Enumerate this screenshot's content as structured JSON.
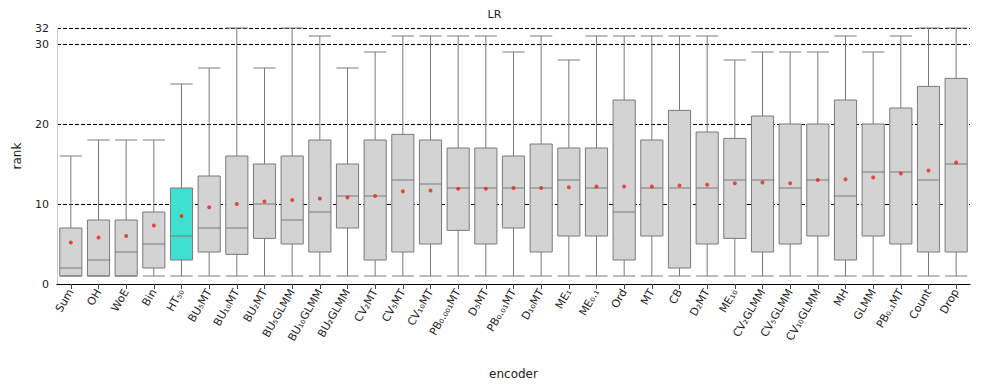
{
  "chart_data": {
    "type": "boxplot",
    "title": "LR",
    "x_label": "encoder",
    "y_label": "rank",
    "categories": [
      "Sum",
      "OH",
      "WoE",
      "Bin",
      "HT₅₀",
      "BU₅MT",
      "BU₁₀MT",
      "BU₂MT",
      "BU₅GLMM",
      "BU₁₀GLMM",
      "BU₂GLMM",
      "CV₂MT",
      "CV₅MT",
      "CV₁₀MT",
      "PB₀.₀₀₁MT",
      "D₅MT",
      "PB₀.₀₁MT",
      "D₁₀MT",
      "ME₁",
      "ME₀.₁",
      "Ord",
      "MT",
      "CB",
      "D₂MT",
      "ME₁₀",
      "CV₂GLMM",
      "CV₅GLMM",
      "CV₁₀GLMM",
      "MH",
      "GLMM",
      "PB₀.₁MT",
      "Count",
      "Drop"
    ],
    "series": [
      {
        "type": "boxplot",
        "values": [
          [
            1,
            1,
            2,
            7,
            16
          ],
          [
            1,
            1,
            3,
            8,
            18
          ],
          [
            1,
            1,
            4,
            8,
            18
          ],
          [
            1,
            2,
            5,
            9,
            18
          ],
          [
            1,
            3,
            6,
            12,
            25
          ],
          [
            1,
            4,
            7,
            13.5,
            27
          ],
          [
            1,
            3.7,
            7,
            16,
            32
          ],
          [
            1,
            5.7,
            10,
            15,
            27
          ],
          [
            1,
            5,
            8,
            16,
            32
          ],
          [
            1,
            4,
            9,
            18,
            31
          ],
          [
            1,
            7,
            11,
            15,
            27
          ],
          [
            1,
            3,
            11,
            18,
            29
          ],
          [
            1,
            4,
            13,
            18.7,
            31
          ],
          [
            1,
            5,
            12.5,
            18,
            31
          ],
          [
            1,
            6.7,
            12,
            17,
            31
          ],
          [
            1,
            5,
            12,
            17,
            31
          ],
          [
            1,
            7,
            12,
            16,
            29
          ],
          [
            1,
            4,
            12,
            17.5,
            31
          ],
          [
            1,
            6,
            13,
            17,
            28
          ],
          [
            1,
            6,
            12,
            17,
            31
          ],
          [
            1,
            3,
            9,
            23,
            31
          ],
          [
            1,
            6,
            12,
            18,
            31
          ],
          [
            1,
            2,
            12,
            21.7,
            31
          ],
          [
            1,
            5,
            12,
            19,
            31
          ],
          [
            1,
            5.7,
            13,
            18.2,
            28
          ],
          [
            1,
            4,
            13,
            21,
            29
          ],
          [
            1,
            5,
            12,
            20,
            29
          ],
          [
            1,
            6,
            13,
            20,
            29
          ],
          [
            1,
            3,
            11,
            23,
            31
          ],
          [
            1,
            6,
            14,
            20,
            29
          ],
          [
            1,
            5,
            14,
            22,
            31
          ],
          [
            1,
            4,
            13,
            24.7,
            32
          ],
          [
            1,
            4,
            15,
            25.7,
            32
          ]
        ],
        "colors": [
          "#d3d3d3",
          "#d3d3d3",
          "#d3d3d3",
          "#d3d3d3",
          "#40e0d0",
          "#d3d3d3",
          "#d3d3d3",
          "#d3d3d3",
          "#d3d3d3",
          "#d3d3d3",
          "#d3d3d3",
          "#d3d3d3",
          "#d3d3d3",
          "#d3d3d3",
          "#d3d3d3",
          "#d3d3d3",
          "#d3d3d3",
          "#d3d3d3",
          "#d3d3d3",
          "#d3d3d3",
          "#d3d3d3",
          "#d3d3d3",
          "#d3d3d3",
          "#d3d3d3",
          "#d3d3d3",
          "#d3d3d3",
          "#d3d3d3",
          "#d3d3d3",
          "#d3d3d3",
          "#d3d3d3",
          "#d3d3d3",
          "#d3d3d3",
          "#d3d3d3"
        ]
      },
      {
        "type": "scatter",
        "marker": "circle",
        "color": "#e3261c",
        "values": [
          5.2,
          5.8,
          6,
          7.3,
          8.5,
          9.6,
          10,
          10.3,
          10.5,
          10.7,
          10.8,
          11,
          11.6,
          11.7,
          11.9,
          11.9,
          12,
          12,
          12.1,
          12.2,
          12.2,
          12.2,
          12.3,
          12.4,
          12.6,
          12.7,
          12.6,
          13,
          13.1,
          13.3,
          13.8,
          14.2,
          15.2
        ]
      }
    ],
    "ylim": [
      0,
      32
    ],
    "yticks": [
      0,
      10,
      20,
      30
    ],
    "grid": true
  }
}
